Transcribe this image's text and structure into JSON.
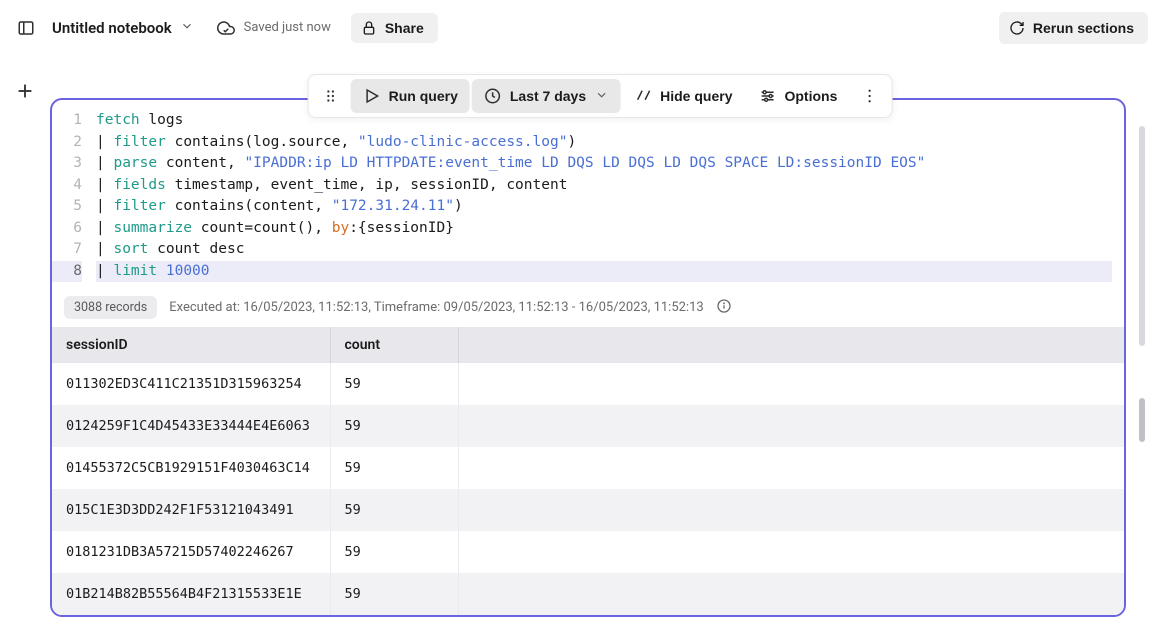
{
  "header": {
    "title": "Untitled notebook",
    "saved_text": "Saved just now",
    "share_label": "Share",
    "rerun_label": "Rerun sections"
  },
  "toolbar": {
    "run_query": "Run query",
    "timeframe": "Last 7 days",
    "hide_query": "Hide query",
    "options": "Options"
  },
  "code": {
    "lines": [
      {
        "n": 1,
        "hl": false,
        "segments": [
          {
            "t": "fetch",
            "c": "keyword"
          },
          {
            "t": " logs",
            "c": "plain"
          }
        ]
      },
      {
        "n": 2,
        "hl": false,
        "segments": [
          {
            "t": "| ",
            "c": "plain"
          },
          {
            "t": "filter",
            "c": "keyword"
          },
          {
            "t": " contains(log.source, ",
            "c": "plain"
          },
          {
            "t": "\"ludo-clinic-access.log\"",
            "c": "string"
          },
          {
            "t": ")",
            "c": "plain"
          }
        ]
      },
      {
        "n": 3,
        "hl": false,
        "segments": [
          {
            "t": "| ",
            "c": "plain"
          },
          {
            "t": "parse",
            "c": "keyword"
          },
          {
            "t": " content, ",
            "c": "plain"
          },
          {
            "t": "\"IPADDR:ip LD HTTPDATE:event_time LD DQS LD DQS LD DQS SPACE LD:sessionID EOS\"",
            "c": "string"
          }
        ]
      },
      {
        "n": 4,
        "hl": false,
        "segments": [
          {
            "t": "| ",
            "c": "plain"
          },
          {
            "t": "fields",
            "c": "keyword"
          },
          {
            "t": " timestamp, event_time, ip, sessionID, content",
            "c": "plain"
          }
        ]
      },
      {
        "n": 5,
        "hl": false,
        "segments": [
          {
            "t": "| ",
            "c": "plain"
          },
          {
            "t": "filter",
            "c": "keyword"
          },
          {
            "t": " contains(content, ",
            "c": "plain"
          },
          {
            "t": "\"172.31.24.11\"",
            "c": "string"
          },
          {
            "t": ")",
            "c": "plain"
          }
        ]
      },
      {
        "n": 6,
        "hl": false,
        "segments": [
          {
            "t": "| ",
            "c": "plain"
          },
          {
            "t": "summarize",
            "c": "keyword"
          },
          {
            "t": " count=count(), ",
            "c": "plain"
          },
          {
            "t": "by",
            "c": "by"
          },
          {
            "t": ":{sessionID}",
            "c": "plain"
          }
        ]
      },
      {
        "n": 7,
        "hl": false,
        "segments": [
          {
            "t": "| ",
            "c": "plain"
          },
          {
            "t": "sort",
            "c": "keyword"
          },
          {
            "t": " count desc",
            "c": "plain"
          }
        ]
      },
      {
        "n": 8,
        "hl": true,
        "segments": [
          {
            "t": "| ",
            "c": "plain"
          },
          {
            "t": "limit",
            "c": "keyword"
          },
          {
            "t": " ",
            "c": "plain"
          },
          {
            "t": "10000",
            "c": "number"
          }
        ]
      }
    ]
  },
  "results": {
    "records_label": "3088 records",
    "executed_text": "Executed at: 16/05/2023, 11:52:13, Timeframe: 09/05/2023, 11:52:13 - 16/05/2023, 11:52:13",
    "columns": [
      "sessionID",
      "count"
    ],
    "rows": [
      [
        "011302ED3C411C21351D315963254",
        "59"
      ],
      [
        "0124259F1C4D45433E33444E4E6063",
        "59"
      ],
      [
        "01455372C5CB1929151F4030463C14",
        "59"
      ],
      [
        "015C1E3D3DD242F1F53121043491",
        "59"
      ],
      [
        "0181231DB3A57215D57402246267",
        "59"
      ],
      [
        "01B214B82B55564B4F21315533E1E",
        "59"
      ]
    ]
  },
  "colors": {
    "accent": "#6b63e0",
    "keyword": "#1f9b89",
    "string": "#4a6fd4",
    "by": "#d66e22",
    "header_bg": "#e8e8ec",
    "row_alt": "#f2f2f5",
    "highlight": "#ecebf8"
  }
}
